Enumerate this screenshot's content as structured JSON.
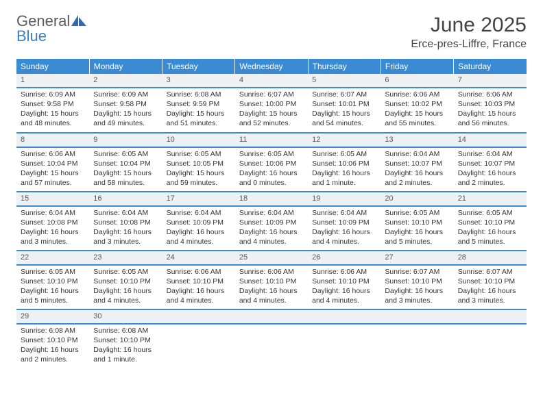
{
  "brand": {
    "top": "General",
    "bottom": "Blue",
    "icon_color": "#2f6bb3"
  },
  "title": "June 2025",
  "location": "Erce-pres-Liffre, France",
  "colors": {
    "header_bg": "#3b8bd4",
    "header_text": "#ffffff",
    "daynum_bg": "#eef1f4",
    "rule": "#3b8bd4"
  },
  "weekdays": [
    "Sunday",
    "Monday",
    "Tuesday",
    "Wednesday",
    "Thursday",
    "Friday",
    "Saturday"
  ],
  "weeks": [
    [
      {
        "n": "1",
        "lines": [
          "Sunrise: 6:09 AM",
          "Sunset: 9:58 PM",
          "Daylight: 15 hours",
          "and 48 minutes."
        ]
      },
      {
        "n": "2",
        "lines": [
          "Sunrise: 6:09 AM",
          "Sunset: 9:58 PM",
          "Daylight: 15 hours",
          "and 49 minutes."
        ]
      },
      {
        "n": "3",
        "lines": [
          "Sunrise: 6:08 AM",
          "Sunset: 9:59 PM",
          "Daylight: 15 hours",
          "and 51 minutes."
        ]
      },
      {
        "n": "4",
        "lines": [
          "Sunrise: 6:07 AM",
          "Sunset: 10:00 PM",
          "Daylight: 15 hours",
          "and 52 minutes."
        ]
      },
      {
        "n": "5",
        "lines": [
          "Sunrise: 6:07 AM",
          "Sunset: 10:01 PM",
          "Daylight: 15 hours",
          "and 54 minutes."
        ]
      },
      {
        "n": "6",
        "lines": [
          "Sunrise: 6:06 AM",
          "Sunset: 10:02 PM",
          "Daylight: 15 hours",
          "and 55 minutes."
        ]
      },
      {
        "n": "7",
        "lines": [
          "Sunrise: 6:06 AM",
          "Sunset: 10:03 PM",
          "Daylight: 15 hours",
          "and 56 minutes."
        ]
      }
    ],
    [
      {
        "n": "8",
        "lines": [
          "Sunrise: 6:06 AM",
          "Sunset: 10:04 PM",
          "Daylight: 15 hours",
          "and 57 minutes."
        ]
      },
      {
        "n": "9",
        "lines": [
          "Sunrise: 6:05 AM",
          "Sunset: 10:04 PM",
          "Daylight: 15 hours",
          "and 58 minutes."
        ]
      },
      {
        "n": "10",
        "lines": [
          "Sunrise: 6:05 AM",
          "Sunset: 10:05 PM",
          "Daylight: 15 hours",
          "and 59 minutes."
        ]
      },
      {
        "n": "11",
        "lines": [
          "Sunrise: 6:05 AM",
          "Sunset: 10:06 PM",
          "Daylight: 16 hours",
          "and 0 minutes."
        ]
      },
      {
        "n": "12",
        "lines": [
          "Sunrise: 6:05 AM",
          "Sunset: 10:06 PM",
          "Daylight: 16 hours",
          "and 1 minute."
        ]
      },
      {
        "n": "13",
        "lines": [
          "Sunrise: 6:04 AM",
          "Sunset: 10:07 PM",
          "Daylight: 16 hours",
          "and 2 minutes."
        ]
      },
      {
        "n": "14",
        "lines": [
          "Sunrise: 6:04 AM",
          "Sunset: 10:07 PM",
          "Daylight: 16 hours",
          "and 2 minutes."
        ]
      }
    ],
    [
      {
        "n": "15",
        "lines": [
          "Sunrise: 6:04 AM",
          "Sunset: 10:08 PM",
          "Daylight: 16 hours",
          "and 3 minutes."
        ]
      },
      {
        "n": "16",
        "lines": [
          "Sunrise: 6:04 AM",
          "Sunset: 10:08 PM",
          "Daylight: 16 hours",
          "and 3 minutes."
        ]
      },
      {
        "n": "17",
        "lines": [
          "Sunrise: 6:04 AM",
          "Sunset: 10:09 PM",
          "Daylight: 16 hours",
          "and 4 minutes."
        ]
      },
      {
        "n": "18",
        "lines": [
          "Sunrise: 6:04 AM",
          "Sunset: 10:09 PM",
          "Daylight: 16 hours",
          "and 4 minutes."
        ]
      },
      {
        "n": "19",
        "lines": [
          "Sunrise: 6:04 AM",
          "Sunset: 10:09 PM",
          "Daylight: 16 hours",
          "and 4 minutes."
        ]
      },
      {
        "n": "20",
        "lines": [
          "Sunrise: 6:05 AM",
          "Sunset: 10:10 PM",
          "Daylight: 16 hours",
          "and 5 minutes."
        ]
      },
      {
        "n": "21",
        "lines": [
          "Sunrise: 6:05 AM",
          "Sunset: 10:10 PM",
          "Daylight: 16 hours",
          "and 5 minutes."
        ]
      }
    ],
    [
      {
        "n": "22",
        "lines": [
          "Sunrise: 6:05 AM",
          "Sunset: 10:10 PM",
          "Daylight: 16 hours",
          "and 5 minutes."
        ]
      },
      {
        "n": "23",
        "lines": [
          "Sunrise: 6:05 AM",
          "Sunset: 10:10 PM",
          "Daylight: 16 hours",
          "and 4 minutes."
        ]
      },
      {
        "n": "24",
        "lines": [
          "Sunrise: 6:06 AM",
          "Sunset: 10:10 PM",
          "Daylight: 16 hours",
          "and 4 minutes."
        ]
      },
      {
        "n": "25",
        "lines": [
          "Sunrise: 6:06 AM",
          "Sunset: 10:10 PM",
          "Daylight: 16 hours",
          "and 4 minutes."
        ]
      },
      {
        "n": "26",
        "lines": [
          "Sunrise: 6:06 AM",
          "Sunset: 10:10 PM",
          "Daylight: 16 hours",
          "and 4 minutes."
        ]
      },
      {
        "n": "27",
        "lines": [
          "Sunrise: 6:07 AM",
          "Sunset: 10:10 PM",
          "Daylight: 16 hours",
          "and 3 minutes."
        ]
      },
      {
        "n": "28",
        "lines": [
          "Sunrise: 6:07 AM",
          "Sunset: 10:10 PM",
          "Daylight: 16 hours",
          "and 3 minutes."
        ]
      }
    ],
    [
      {
        "n": "29",
        "lines": [
          "Sunrise: 6:08 AM",
          "Sunset: 10:10 PM",
          "Daylight: 16 hours",
          "and 2 minutes."
        ]
      },
      {
        "n": "30",
        "lines": [
          "Sunrise: 6:08 AM",
          "Sunset: 10:10 PM",
          "Daylight: 16 hours",
          "and 1 minute."
        ]
      },
      null,
      null,
      null,
      null,
      null
    ]
  ]
}
